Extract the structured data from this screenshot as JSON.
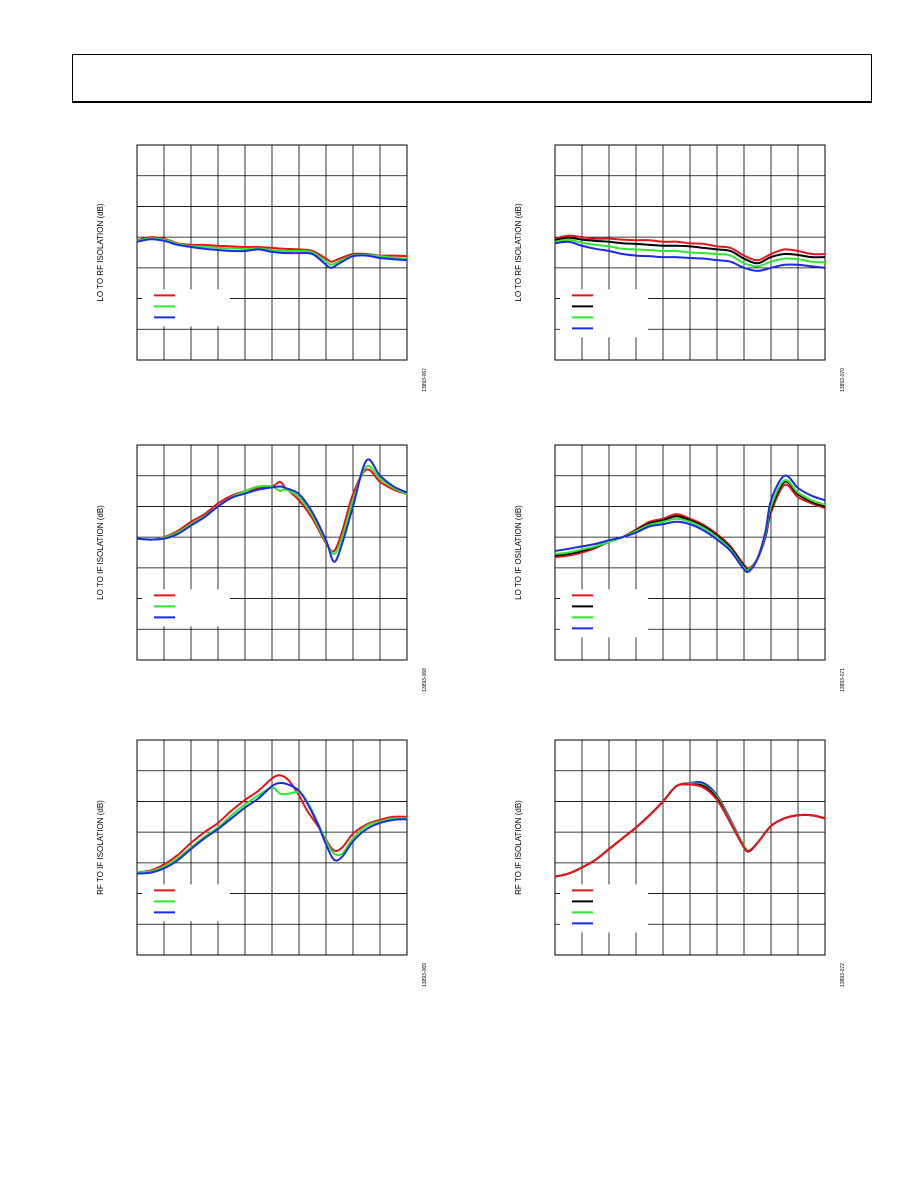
{
  "header": {
    "title": ""
  },
  "colors": {
    "red": "#e8141b",
    "green": "#2ee82e",
    "blue": "#1a2be6",
    "black": "#000000"
  },
  "chart_data": [
    {
      "type": "line",
      "ylabel": "LO TO RF ISOLATION (dB)",
      "figure_id": "13893-067",
      "grid": true,
      "xlim": [
        0,
        10
      ],
      "ylim": [
        0,
        7
      ],
      "series": [
        {
          "color": "red",
          "x": [
            0,
            0.5,
            1,
            1.5,
            2,
            2.5,
            3,
            3.5,
            4,
            4.5,
            5,
            5.5,
            6,
            6.5,
            7,
            7.2,
            7.5,
            8,
            8.5,
            9,
            9.5,
            10
          ],
          "y": [
            3.9,
            4.0,
            3.95,
            3.8,
            3.75,
            3.75,
            3.72,
            3.7,
            3.68,
            3.68,
            3.65,
            3.62,
            3.6,
            3.55,
            3.3,
            3.2,
            3.3,
            3.45,
            3.45,
            3.4,
            3.4,
            3.38
          ]
        },
        {
          "color": "green",
          "x": [
            0,
            0.5,
            1,
            1.5,
            2,
            2.5,
            3,
            3.5,
            4,
            4.5,
            5,
            5.5,
            6,
            6.5,
            7,
            7.2,
            7.5,
            8,
            8.5,
            9,
            9.5,
            10
          ],
          "y": [
            3.88,
            3.96,
            3.92,
            3.78,
            3.7,
            3.68,
            3.65,
            3.63,
            3.62,
            3.63,
            3.58,
            3.55,
            3.55,
            3.5,
            3.2,
            3.1,
            3.22,
            3.4,
            3.42,
            3.38,
            3.33,
            3.3
          ]
        },
        {
          "color": "blue",
          "x": [
            0,
            0.5,
            1,
            1.5,
            2,
            2.5,
            3,
            3.5,
            4,
            4.5,
            5,
            5.5,
            6,
            6.5,
            7,
            7.2,
            7.5,
            8,
            8.5,
            9,
            9.5,
            10
          ],
          "y": [
            3.85,
            3.93,
            3.88,
            3.75,
            3.68,
            3.62,
            3.58,
            3.55,
            3.55,
            3.6,
            3.52,
            3.48,
            3.48,
            3.45,
            3.1,
            3.0,
            3.15,
            3.38,
            3.4,
            3.32,
            3.28,
            3.25
          ]
        }
      ]
    },
    {
      "type": "line",
      "ylabel": "LO TO RF ISOLATION (dB)",
      "figure_id": "13893-070",
      "grid": true,
      "xlim": [
        0,
        10
      ],
      "ylim": [
        0,
        7
      ],
      "series": [
        {
          "color": "red",
          "x": [
            0,
            0.5,
            1,
            1.5,
            2,
            2.5,
            3,
            3.5,
            4,
            4.5,
            5,
            5.5,
            6,
            6.5,
            7,
            7.5,
            8,
            8.5,
            9,
            9.5,
            10
          ],
          "y": [
            3.95,
            4.05,
            4.0,
            3.95,
            3.95,
            3.92,
            3.9,
            3.9,
            3.85,
            3.85,
            3.8,
            3.78,
            3.7,
            3.65,
            3.4,
            3.25,
            3.45,
            3.6,
            3.55,
            3.45,
            3.45
          ]
        },
        {
          "color": "black",
          "x": [
            0,
            0.5,
            1,
            1.5,
            2,
            2.5,
            3,
            3.5,
            4,
            4.5,
            5,
            5.5,
            6,
            6.5,
            7,
            7.5,
            8,
            8.5,
            9,
            9.5,
            10
          ],
          "y": [
            3.9,
            3.98,
            3.92,
            3.88,
            3.85,
            3.8,
            3.78,
            3.75,
            3.72,
            3.72,
            3.7,
            3.65,
            3.6,
            3.55,
            3.3,
            3.15,
            3.35,
            3.45,
            3.42,
            3.35,
            3.35
          ]
        },
        {
          "color": "green",
          "x": [
            0,
            0.5,
            1,
            1.5,
            2,
            2.5,
            3,
            3.5,
            4,
            4.5,
            5,
            5.5,
            6,
            6.5,
            7,
            7.5,
            8,
            8.5,
            9,
            9.5,
            10
          ],
          "y": [
            3.85,
            3.92,
            3.82,
            3.75,
            3.7,
            3.62,
            3.6,
            3.58,
            3.55,
            3.55,
            3.5,
            3.48,
            3.45,
            3.4,
            3.15,
            3.05,
            3.2,
            3.3,
            3.28,
            3.2,
            3.18
          ]
        },
        {
          "color": "blue",
          "x": [
            0,
            0.5,
            1,
            1.5,
            2,
            2.5,
            3,
            3.5,
            4,
            4.5,
            5,
            5.5,
            6,
            6.5,
            7,
            7.5,
            8,
            8.5,
            9,
            9.5,
            10
          ],
          "y": [
            3.8,
            3.85,
            3.72,
            3.62,
            3.55,
            3.45,
            3.4,
            3.38,
            3.35,
            3.35,
            3.32,
            3.3,
            3.25,
            3.2,
            3.0,
            2.9,
            3.0,
            3.1,
            3.1,
            3.05,
            3.0
          ]
        }
      ]
    },
    {
      "type": "line",
      "ylabel": "LO TO IF ISOLATION (dB)",
      "figure_id": "13893-068",
      "grid": true,
      "xlim": [
        0,
        10
      ],
      "ylim": [
        0,
        7
      ],
      "series": [
        {
          "color": "red",
          "x": [
            0,
            0.5,
            1,
            1.5,
            2,
            2.5,
            3,
            3.5,
            4,
            4.5,
            5,
            5.3,
            5.5,
            6,
            6.5,
            7,
            7.3,
            7.6,
            8,
            8.5,
            9,
            9.5,
            10
          ],
          "y": [
            3.95,
            3.92,
            4.0,
            4.2,
            4.5,
            4.75,
            5.1,
            5.35,
            5.5,
            5.6,
            5.65,
            5.8,
            5.6,
            5.2,
            4.6,
            3.8,
            3.55,
            4.2,
            5.4,
            6.2,
            5.8,
            5.55,
            5.4
          ]
        },
        {
          "color": "green",
          "x": [
            0,
            0.5,
            1,
            1.5,
            2,
            2.5,
            3,
            3.5,
            4,
            4.5,
            5,
            5.3,
            5.5,
            6,
            6.5,
            7,
            7.3,
            7.6,
            8,
            8.5,
            9,
            9.5,
            10
          ],
          "y": [
            3.95,
            3.92,
            3.98,
            4.15,
            4.42,
            4.68,
            5.0,
            5.3,
            5.5,
            5.65,
            5.65,
            5.5,
            5.55,
            5.3,
            4.7,
            3.85,
            3.45,
            4.0,
            5.2,
            6.3,
            5.9,
            5.6,
            5.4
          ]
        },
        {
          "color": "blue",
          "x": [
            0,
            0.5,
            1,
            1.5,
            2,
            2.5,
            3,
            3.5,
            4,
            4.5,
            5,
            5.3,
            5.5,
            6,
            6.5,
            7,
            7.3,
            7.6,
            8,
            8.5,
            9,
            9.5,
            10
          ],
          "y": [
            3.95,
            3.92,
            3.95,
            4.1,
            4.38,
            4.65,
            5.0,
            5.28,
            5.42,
            5.55,
            5.62,
            5.65,
            5.6,
            5.4,
            4.8,
            3.9,
            3.2,
            3.8,
            5.0,
            6.5,
            6.0,
            5.65,
            5.45
          ]
        }
      ]
    },
    {
      "type": "line",
      "ylabel": "LO TO IF OSILATION (dB)",
      "figure_id": "13893-071",
      "grid": true,
      "xlim": [
        0,
        10
      ],
      "ylim": [
        0,
        7
      ],
      "series": [
        {
          "color": "red",
          "x": [
            0,
            0.5,
            1,
            1.5,
            2,
            2.5,
            3,
            3.5,
            4,
            4.5,
            5,
            5.5,
            6,
            6.5,
            7,
            7.2,
            7.5,
            7.8,
            8,
            8.5,
            9,
            9.5,
            10
          ],
          "y": [
            3.35,
            3.4,
            3.5,
            3.65,
            3.85,
            4.0,
            4.25,
            4.5,
            4.6,
            4.75,
            4.6,
            4.4,
            4.1,
            3.7,
            3.1,
            3.0,
            3.3,
            4.0,
            4.8,
            5.7,
            5.3,
            5.1,
            4.95
          ]
        },
        {
          "color": "black",
          "x": [
            0,
            0.5,
            1,
            1.5,
            2,
            2.5,
            3,
            3.5,
            4,
            4.5,
            5,
            5.5,
            6,
            6.5,
            7,
            7.2,
            7.5,
            7.8,
            8,
            8.5,
            9,
            9.5,
            10
          ],
          "y": [
            3.4,
            3.45,
            3.55,
            3.68,
            3.85,
            4.0,
            4.22,
            4.45,
            4.55,
            4.68,
            4.55,
            4.35,
            4.05,
            3.65,
            3.05,
            2.95,
            3.3,
            4.05,
            4.9,
            5.8,
            5.4,
            5.15,
            5.0
          ]
        },
        {
          "color": "green",
          "x": [
            0,
            0.5,
            1,
            1.5,
            2,
            2.5,
            3,
            3.5,
            4,
            4.5,
            5,
            5.5,
            6,
            6.5,
            7,
            7.2,
            7.5,
            7.8,
            8,
            8.5,
            9,
            9.5,
            10
          ],
          "y": [
            3.45,
            3.5,
            3.6,
            3.7,
            3.85,
            4.0,
            4.2,
            4.4,
            4.5,
            4.6,
            4.5,
            4.3,
            4.0,
            3.6,
            3.0,
            2.95,
            3.3,
            4.1,
            5.0,
            5.85,
            5.45,
            5.2,
            5.05
          ]
        },
        {
          "color": "blue",
          "x": [
            0,
            0.5,
            1,
            1.5,
            2,
            2.5,
            3,
            3.5,
            4,
            4.5,
            5,
            5.5,
            6,
            6.5,
            7,
            7.2,
            7.5,
            7.8,
            8,
            8.5,
            9,
            9.5,
            10
          ],
          "y": [
            3.55,
            3.62,
            3.7,
            3.78,
            3.9,
            4.0,
            4.15,
            4.35,
            4.42,
            4.5,
            4.42,
            4.22,
            3.92,
            3.55,
            2.95,
            2.9,
            3.3,
            4.2,
            5.2,
            6.0,
            5.6,
            5.35,
            5.2
          ]
        }
      ]
    },
    {
      "type": "line",
      "ylabel": "RF TO IF ISOLATION (dB)",
      "figure_id": "13893-069",
      "grid": true,
      "xlim": [
        0,
        10
      ],
      "ylim": [
        0,
        7
      ],
      "series": [
        {
          "color": "red",
          "x": [
            0,
            0.5,
            1,
            1.5,
            2,
            2.5,
            3,
            3.5,
            4,
            4.5,
            5,
            5.3,
            5.6,
            6,
            6.3,
            6.7,
            7,
            7.3,
            7.6,
            8,
            8.5,
            9,
            9.5,
            10
          ],
          "y": [
            2.7,
            2.75,
            2.95,
            3.25,
            3.65,
            4.0,
            4.3,
            4.7,
            5.05,
            5.35,
            5.75,
            5.85,
            5.7,
            5.2,
            4.7,
            4.2,
            3.75,
            3.4,
            3.5,
            3.95,
            4.25,
            4.4,
            4.5,
            4.5
          ]
        },
        {
          "color": "green",
          "x": [
            0,
            0.5,
            1,
            1.5,
            2,
            2.5,
            3,
            3.5,
            4,
            4.5,
            5,
            5.3,
            5.6,
            6,
            6.3,
            6.7,
            7,
            7.3,
            7.6,
            8,
            8.5,
            9,
            9.5,
            10
          ],
          "y": [
            2.7,
            2.72,
            2.88,
            3.15,
            3.5,
            3.85,
            4.15,
            4.55,
            4.9,
            5.2,
            5.45,
            5.25,
            5.25,
            5.3,
            5.0,
            4.3,
            3.7,
            3.3,
            3.3,
            3.8,
            4.2,
            4.35,
            4.45,
            4.45
          ]
        },
        {
          "color": "blue",
          "x": [
            0,
            0.5,
            1,
            1.5,
            2,
            2.5,
            3,
            3.5,
            4,
            4.5,
            5,
            5.3,
            5.6,
            6,
            6.3,
            6.7,
            7,
            7.3,
            7.6,
            8,
            8.5,
            9,
            9.5,
            10
          ],
          "y": [
            2.65,
            2.68,
            2.82,
            3.08,
            3.45,
            3.8,
            4.1,
            4.45,
            4.8,
            5.1,
            5.5,
            5.6,
            5.55,
            5.35,
            4.95,
            4.25,
            3.6,
            3.1,
            3.2,
            3.7,
            4.1,
            4.3,
            4.4,
            4.42
          ]
        }
      ]
    },
    {
      "type": "line",
      "ylabel": "RF TO IF ISOLATION (dB)",
      "figure_id": "13893-072",
      "grid": true,
      "xlim": [
        0,
        10
      ],
      "ylim": [
        0,
        7
      ],
      "series": [
        {
          "color": "blue",
          "x": [
            0,
            0.5,
            1,
            1.5,
            2,
            2.5,
            3,
            3.5,
            4,
            4.5,
            5,
            5.5,
            6,
            6.5,
            7,
            7.2,
            7.5,
            8,
            8.5,
            9,
            9.5,
            10
          ],
          "y": [
            2.55,
            2.65,
            2.85,
            3.1,
            3.45,
            3.8,
            4.15,
            4.55,
            5.0,
            5.5,
            5.6,
            5.6,
            5.2,
            4.4,
            3.55,
            3.4,
            3.65,
            4.2,
            4.45,
            4.55,
            4.55,
            4.45
          ]
        },
        {
          "color": "green",
          "x": [
            0,
            0.5,
            1,
            1.5,
            2,
            2.5,
            3,
            3.5,
            4,
            4.5,
            5,
            5.5,
            6,
            6.5,
            7,
            7.2,
            7.5,
            8,
            8.5,
            9,
            9.5,
            10
          ],
          "y": [
            2.55,
            2.65,
            2.85,
            3.1,
            3.45,
            3.8,
            4.15,
            4.55,
            5.0,
            5.5,
            5.58,
            5.52,
            5.15,
            4.35,
            3.55,
            3.4,
            3.65,
            4.2,
            4.45,
            4.55,
            4.55,
            4.45
          ]
        },
        {
          "color": "black",
          "x": [
            0,
            0.5,
            1,
            1.5,
            2,
            2.5,
            3,
            3.5,
            4,
            4.5,
            5,
            5.5,
            6,
            6.5,
            7,
            7.2,
            7.5,
            8,
            8.5,
            9,
            9.5,
            10
          ],
          "y": [
            2.55,
            2.65,
            2.85,
            3.1,
            3.45,
            3.8,
            4.15,
            4.55,
            5.0,
            5.5,
            5.55,
            5.5,
            5.1,
            4.3,
            3.5,
            3.38,
            3.65,
            4.2,
            4.45,
            4.55,
            4.55,
            4.45
          ]
        },
        {
          "color": "red",
          "x": [
            0,
            0.5,
            1,
            1.5,
            2,
            2.5,
            3,
            3.5,
            4,
            4.5,
            5,
            5.5,
            6,
            6.5,
            7,
            7.2,
            7.5,
            8,
            8.5,
            9,
            9.5,
            10
          ],
          "y": [
            2.55,
            2.65,
            2.85,
            3.1,
            3.45,
            3.8,
            4.15,
            4.55,
            5.0,
            5.5,
            5.55,
            5.45,
            5.05,
            4.3,
            3.5,
            3.4,
            3.65,
            4.2,
            4.45,
            4.55,
            4.55,
            4.45
          ]
        }
      ]
    }
  ]
}
